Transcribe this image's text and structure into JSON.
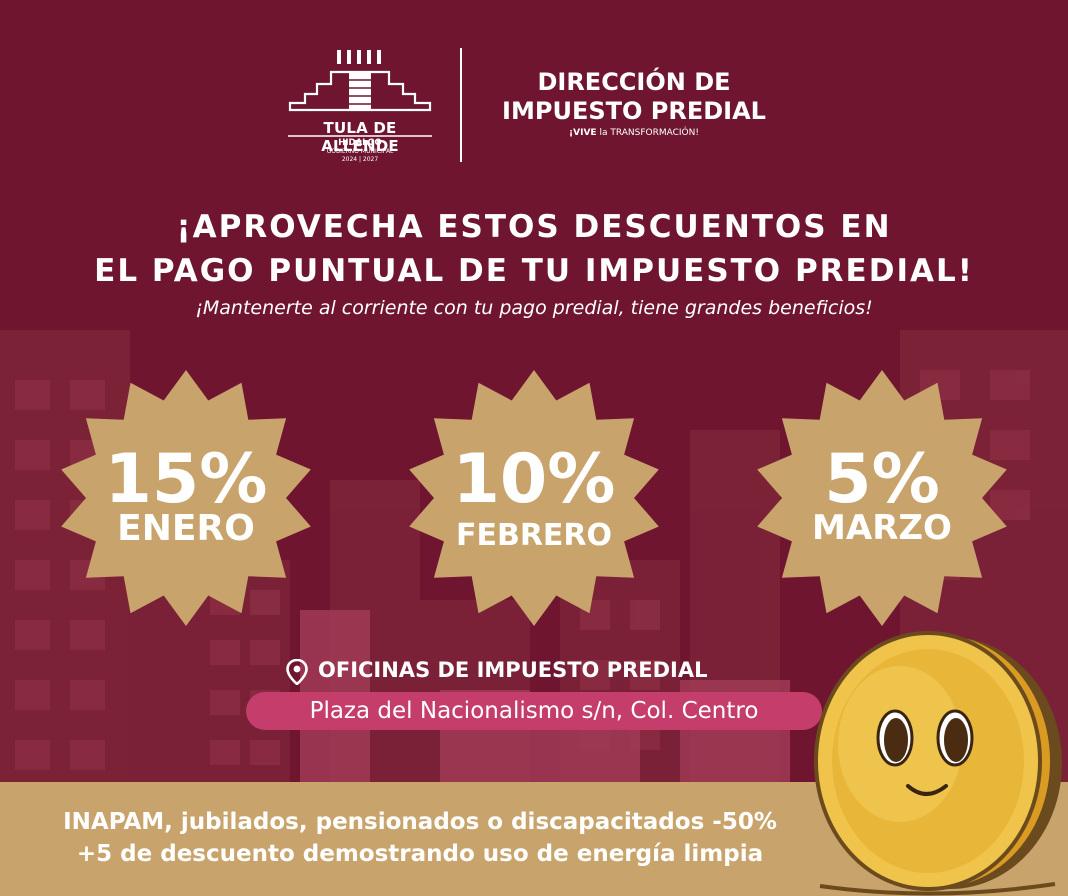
{
  "header": {
    "municipality": "TULA DE ALLENDE",
    "state": "HIDALGO",
    "government": "GOBIERNO MUNICIPAL",
    "years": "2024 | 2027",
    "department_line1": "DIRECCIÓN DE",
    "department_line2": "IMPUESTO PREDIAL",
    "tagline_bold": "¡VIVE",
    "tagline_small": " la ",
    "tagline_end": "TRANSFORMACIÓN!"
  },
  "headline": {
    "line1": "¡APROVECHA ESTOS DESCUENTOS EN",
    "line2": "EL PAGO PUNTUAL DE TU IMPUESTO PREDIAL!",
    "subtitle": "¡Mantenerte al corriente con tu pago predial, tiene grandes beneficios!"
  },
  "discounts": [
    {
      "percent": "15%",
      "month": "ENERO"
    },
    {
      "percent": "10%",
      "month": "FEBRERO"
    },
    {
      "percent": "5%",
      "month": "MARZO"
    }
  ],
  "office": {
    "title": "OFICINAS DE IMPUESTO PREDIAL",
    "address": "Plaza del Nacionalismo s/n, Col. Centro"
  },
  "benefits": {
    "line1": "INAPAM, jubilados, pensionados o discapacitados -50%",
    "line2": "+5 de descuento demostrando uso de energía limpia"
  },
  "colors": {
    "background": "#6f1530",
    "badge": "#c8a46c",
    "address_pill": "#c43d6b",
    "band": "#c8a46c",
    "coin": "#e6b23a"
  },
  "icons": [
    "location-pin-icon",
    "pyramid-logo-icon",
    "smiling-coin-icon"
  ]
}
